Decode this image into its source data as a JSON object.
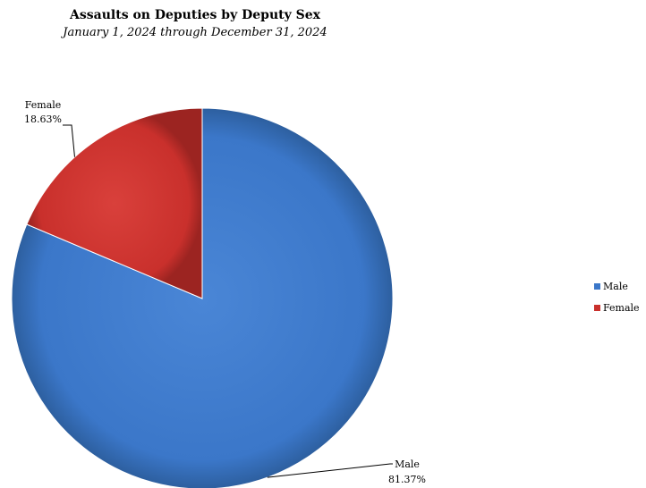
{
  "chart_data": {
    "type": "pie",
    "title": "Assaults on Deputies by Deputy Sex",
    "subtitle": "January 1, 2024 through December 31, 2024",
    "slices": [
      {
        "label": "Male",
        "percent_label": "81.37%",
        "value": 81.37,
        "color": "#3b77c9"
      },
      {
        "label": "Female",
        "percent_label": "18.63%",
        "value": 18.63,
        "color": "#c9302c"
      }
    ],
    "legend": {
      "placement": "right",
      "items": [
        {
          "label": "Male",
          "color": "#3b77c9"
        },
        {
          "label": "Female",
          "color": "#c9302c"
        }
      ]
    }
  }
}
